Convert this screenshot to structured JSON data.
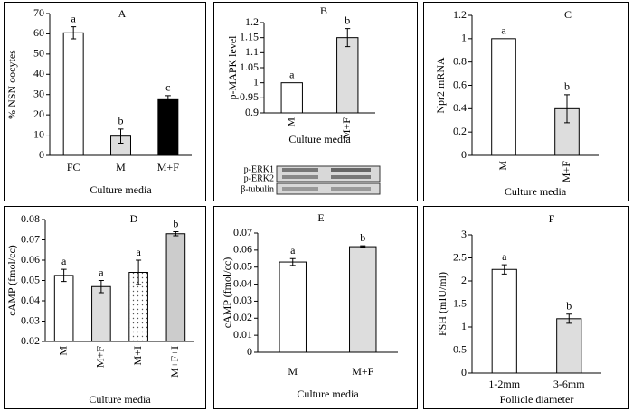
{
  "chart_data": [
    {
      "type": "bar",
      "title": "A",
      "y_label": "% NSN oocytes",
      "x_label": "Culture media",
      "categories": [
        "FC",
        "M",
        "M+F"
      ],
      "values": [
        60.5,
        9.5,
        27.5
      ],
      "errors": [
        3,
        3.5,
        2
      ],
      "letters": [
        "a",
        "b",
        "c"
      ],
      "colors": [
        "#ffffff",
        "#dddddd",
        "#000000"
      ],
      "patterns": [
        "none",
        "none",
        "none"
      ],
      "ylim": [
        0,
        70
      ],
      "yticks": [
        0,
        10,
        20,
        30,
        40,
        50,
        60,
        70
      ]
    },
    {
      "type": "bar",
      "title": "B",
      "y_label": "p-MAPK level",
      "x_label": "Culture media",
      "categories": [
        "M",
        "M+F"
      ],
      "values": [
        1.0,
        1.15
      ],
      "errors": [
        null,
        0.03
      ],
      "letters": [
        "a",
        "b"
      ],
      "colors": [
        "#ffffff",
        "#dddddd"
      ],
      "patterns": [
        "none",
        "none"
      ],
      "ylim": [
        0.9,
        1.2
      ],
      "yticks": [
        0.9,
        0.95,
        1,
        1.05,
        1.1,
        1.15,
        1.2
      ],
      "blot_labels": [
        "p-ERK1",
        "p-ERK2",
        "β-tubulin"
      ]
    },
    {
      "type": "bar",
      "title": "C",
      "y_label": "Npr2 mRNA",
      "x_label": "Culture media",
      "categories": [
        "M",
        "M+F"
      ],
      "values": [
        1.0,
        0.4
      ],
      "errors": [
        null,
        0.12
      ],
      "letters": [
        "a",
        "b"
      ],
      "colors": [
        "#ffffff",
        "#dddddd"
      ],
      "patterns": [
        "none",
        "none"
      ],
      "ylim": [
        0,
        1.2
      ],
      "yticks": [
        0,
        0.2,
        0.4,
        0.6,
        0.8,
        1,
        1.2
      ]
    },
    {
      "type": "bar",
      "title": "D",
      "y_label": "cAMP (fmol/cc)",
      "x_label": "Culture media",
      "categories": [
        "M",
        "M+F",
        "M+I",
        "M+F+I"
      ],
      "values": [
        0.0525,
        0.047,
        0.054,
        0.073
      ],
      "errors": [
        0.003,
        0.003,
        0.006,
        0.001
      ],
      "letters": [
        "a",
        "a",
        "a",
        "b"
      ],
      "colors": [
        "#ffffff",
        "#dddddd",
        "#ffffff",
        "#cccccc"
      ],
      "patterns": [
        "none",
        "none",
        "dots",
        "none"
      ],
      "ylim": [
        0.02,
        0.08
      ],
      "yticks": [
        0.02,
        0.03,
        0.04,
        0.05,
        0.06,
        0.07,
        0.08
      ]
    },
    {
      "type": "bar",
      "title": "E",
      "y_label": "cAMP (fmol/cc)",
      "x_label": "Culture media",
      "categories": [
        "M",
        "M+F"
      ],
      "values": [
        0.053,
        0.062
      ],
      "errors": [
        0.002,
        0.0005
      ],
      "letters": [
        "a",
        "b"
      ],
      "colors": [
        "#ffffff",
        "#dddddd"
      ],
      "patterns": [
        "none",
        "none"
      ],
      "ylim": [
        0,
        0.07
      ],
      "yticks": [
        0,
        0.01,
        0.02,
        0.03,
        0.04,
        0.05,
        0.06,
        0.07
      ]
    },
    {
      "type": "bar",
      "title": "F",
      "y_label": "FSH (mIU/ml)",
      "x_label": "Follicle diameter",
      "categories": [
        "1-2mm",
        "3-6mm"
      ],
      "values": [
        2.25,
        1.18
      ],
      "errors": [
        0.1,
        0.1
      ],
      "letters": [
        "a",
        "b"
      ],
      "colors": [
        "#ffffff",
        "#dddddd"
      ],
      "patterns": [
        "none",
        "none"
      ],
      "ylim": [
        0,
        3
      ],
      "yticks": [
        0,
        0.5,
        1,
        1.5,
        2,
        2.5,
        3
      ]
    }
  ]
}
